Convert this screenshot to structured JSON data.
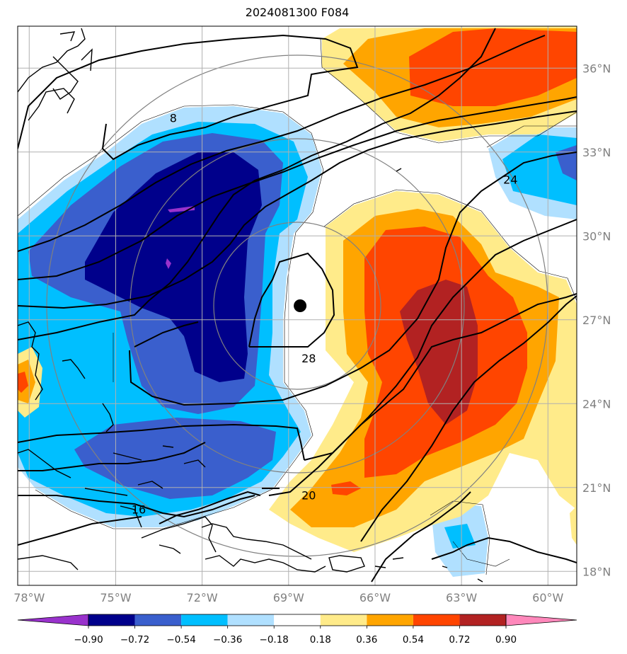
{
  "title": "2024081300 F084",
  "map": {
    "lon_range": [
      -78.4,
      -59.0
    ],
    "lat_range": [
      17.5,
      37.5
    ],
    "lon_ticks": [
      {
        "value": -78,
        "label": "78°W"
      },
      {
        "value": -75,
        "label": "75°W"
      },
      {
        "value": -72,
        "label": "72°W"
      },
      {
        "value": -69,
        "label": "69°W"
      },
      {
        "value": -66,
        "label": "66°W"
      },
      {
        "value": -63,
        "label": "63°W"
      },
      {
        "value": -60,
        "label": "60°W"
      }
    ],
    "lat_ticks": [
      {
        "value": 18,
        "label": "18°N"
      },
      {
        "value": 21,
        "label": "21°N"
      },
      {
        "value": 24,
        "label": "24°N"
      },
      {
        "value": 27,
        "label": "27°N"
      },
      {
        "value": 30,
        "label": "30°N"
      },
      {
        "value": 33,
        "label": "33°N"
      },
      {
        "value": 36,
        "label": "36°N"
      }
    ],
    "storm_center": {
      "lon": -68.6,
      "lat": 27.5
    },
    "contour_labels": [
      {
        "text": "8",
        "lon": -73.0,
        "lat": 34.2
      },
      {
        "text": "24",
        "lon": -61.3,
        "lat": 32.0
      },
      {
        "text": "28",
        "lon": -68.3,
        "lat": 25.6
      },
      {
        "text": "20",
        "lon": -68.3,
        "lat": 20.7
      },
      {
        "text": "16",
        "lon": -74.2,
        "lat": 20.2
      }
    ]
  },
  "colorbar": {
    "tick_labels": [
      "−0.90",
      "−0.72",
      "−0.54",
      "−0.36",
      "−0.18",
      "0.18",
      "0.36",
      "0.54",
      "0.72",
      "0.90"
    ],
    "colors": [
      "#9932cc",
      "#00008b",
      "#3a5fcd",
      "#00bfff",
      "#b0e0ff",
      "#ffffff",
      "#ffeb8a",
      "#ffa500",
      "#ff4500",
      "#b22222",
      "#ff88bb"
    ]
  }
}
